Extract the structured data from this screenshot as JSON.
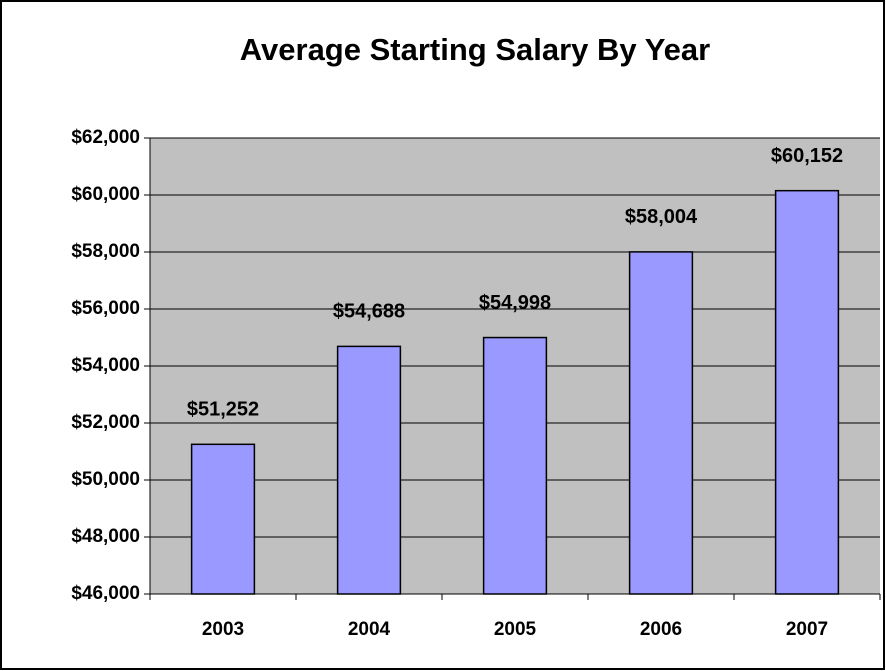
{
  "chart_data": {
    "type": "bar",
    "title": "Average Starting Salary By Year",
    "categories": [
      "2003",
      "2004",
      "2005",
      "2006",
      "2007"
    ],
    "values": [
      51252,
      54688,
      54998,
      58004,
      60152
    ],
    "value_labels": [
      "$51,252",
      "$54,688",
      "$54,998",
      "$58,004",
      "$60,152"
    ],
    "color": "#9999ff",
    "ylim": [
      46000,
      62000
    ],
    "yticks": [
      {
        "value": 46000,
        "label": "$46,000"
      },
      {
        "value": 48000,
        "label": "$48,000"
      },
      {
        "value": 50000,
        "label": "$50,000"
      },
      {
        "value": 52000,
        "label": "$52,000"
      },
      {
        "value": 54000,
        "label": "$54,000"
      },
      {
        "value": 56000,
        "label": "$56,000"
      },
      {
        "value": 58000,
        "label": "$58,000"
      },
      {
        "value": 60000,
        "label": "$60,000"
      },
      {
        "value": 62000,
        "label": "$62,000"
      }
    ],
    "grid": true
  }
}
